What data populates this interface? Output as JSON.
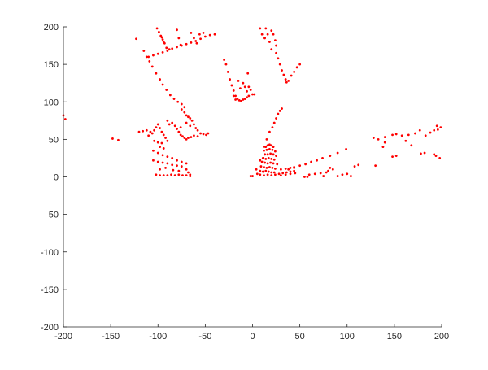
{
  "chart_data": {
    "type": "scatter",
    "title": "",
    "xlabel": "",
    "ylabel": "",
    "xlim": [
      -200,
      200
    ],
    "ylim": [
      -200,
      200
    ],
    "xticks": [
      "-200",
      "-150",
      "-100",
      "-50",
      "0",
      "50",
      "100",
      "150",
      "200"
    ],
    "yticks": [
      "-200",
      "-150",
      "-100",
      "-50",
      "0",
      "50",
      "100",
      "150",
      "200"
    ],
    "xtick_values": [
      -200,
      -150,
      -100,
      -50,
      0,
      50,
      100,
      150,
      200
    ],
    "ytick_values": [
      -200,
      -150,
      -100,
      -50,
      0,
      50,
      100,
      150,
      200
    ],
    "grid": false,
    "marker_color": "#ff0000",
    "axis_color": "#262626",
    "points": [
      [
        -110,
        160
      ],
      [
        -105,
        162
      ],
      [
        -100,
        164
      ],
      [
        -95,
        166
      ],
      [
        -90,
        168
      ],
      [
        -85,
        171
      ],
      [
        -80,
        173
      ],
      [
        -75,
        175
      ],
      [
        -70,
        177
      ],
      [
        -65,
        179
      ],
      [
        -60,
        181
      ],
      [
        -55,
        184
      ],
      [
        -50,
        187
      ],
      [
        -45,
        189
      ],
      [
        -40,
        190
      ],
      [
        -101,
        198
      ],
      [
        -99,
        193
      ],
      [
        -97,
        188
      ],
      [
        -95,
        183
      ],
      [
        -93,
        178
      ],
      [
        -91,
        172
      ],
      [
        -96,
        186
      ],
      [
        -94,
        180
      ],
      [
        -88,
        170
      ],
      [
        -80,
        196
      ],
      [
        -78,
        185
      ],
      [
        -76,
        176
      ],
      [
        -65,
        192
      ],
      [
        -62,
        185
      ],
      [
        -59,
        178
      ],
      [
        -56,
        190
      ],
      [
        -52,
        192
      ],
      [
        -123,
        184
      ],
      [
        -115,
        168
      ],
      [
        -112,
        160
      ],
      [
        -109,
        154
      ],
      [
        -106,
        147
      ],
      [
        -102,
        138
      ],
      [
        -98,
        130
      ],
      [
        -95,
        123
      ],
      [
        -91,
        116
      ],
      [
        -87,
        109
      ],
      [
        -83,
        104
      ],
      [
        -79,
        100
      ],
      [
        -75,
        97
      ],
      [
        -72,
        93
      ],
      [
        -75,
        90
      ],
      [
        -72,
        86
      ],
      [
        -70,
        82
      ],
      [
        -68,
        80
      ],
      [
        -66,
        78
      ],
      [
        -64,
        75
      ],
      [
        -62,
        70
      ],
      [
        -60,
        65
      ],
      [
        -58,
        62
      ],
      [
        -55,
        58
      ],
      [
        -52,
        57
      ],
      [
        -49,
        56
      ],
      [
        -47,
        58
      ],
      [
        -85,
        72
      ],
      [
        -82,
        68
      ],
      [
        -80,
        64
      ],
      [
        -78,
        60
      ],
      [
        -76,
        56
      ],
      [
        -74,
        54
      ],
      [
        -72,
        52
      ],
      [
        -70,
        50
      ],
      [
        -68,
        52
      ],
      [
        -65,
        53
      ],
      [
        -62,
        55
      ],
      [
        -58,
        54
      ],
      [
        -90,
        75
      ],
      [
        -88,
        70
      ],
      [
        -70,
        72
      ],
      [
        -66,
        68
      ],
      [
        -76,
        66
      ],
      [
        -120,
        60
      ],
      [
        -116,
        61
      ],
      [
        -112,
        62
      ],
      [
        -108,
        60
      ],
      [
        -106,
        58
      ],
      [
        -104,
        62
      ],
      [
        -102,
        66
      ],
      [
        -100,
        70
      ],
      [
        -98,
        65
      ],
      [
        -96,
        60
      ],
      [
        -94,
        56
      ],
      [
        -92,
        52
      ],
      [
        -90,
        48
      ],
      [
        -110,
        55
      ],
      [
        -104,
        48
      ],
      [
        -100,
        46
      ],
      [
        -105,
        35
      ],
      [
        -100,
        32
      ],
      [
        -95,
        29
      ],
      [
        -90,
        27
      ],
      [
        -85,
        25
      ],
      [
        -80,
        22
      ],
      [
        -75,
        20
      ],
      [
        -70,
        18
      ],
      [
        -105,
        22
      ],
      [
        -100,
        20
      ],
      [
        -95,
        19
      ],
      [
        -90,
        18
      ],
      [
        -85,
        16
      ],
      [
        -80,
        15
      ],
      [
        -75,
        14
      ],
      [
        -70,
        10
      ],
      [
        -68,
        6
      ],
      [
        -66,
        3
      ],
      [
        -102,
        3
      ],
      [
        -98,
        2
      ],
      [
        -94,
        2
      ],
      [
        -90,
        2
      ],
      [
        -86,
        3
      ],
      [
        -82,
        2
      ],
      [
        -78,
        3
      ],
      [
        -74,
        2
      ],
      [
        -70,
        2
      ],
      [
        -66,
        1
      ],
      [
        -98,
        10
      ],
      [
        -92,
        12
      ],
      [
        -84,
        9
      ],
      [
        -78,
        8
      ],
      [
        -98,
        40
      ],
      [
        -96,
        45
      ],
      [
        -94,
        38
      ],
      [
        -200,
        82
      ],
      [
        -198,
        77
      ],
      [
        -148,
        51
      ],
      [
        -142,
        49
      ],
      [
        -30,
        156
      ],
      [
        -28,
        150
      ],
      [
        -26,
        140
      ],
      [
        -24,
        130
      ],
      [
        -22,
        122
      ],
      [
        -20,
        115
      ],
      [
        -18,
        108
      ],
      [
        -16,
        104
      ],
      [
        -14,
        102
      ],
      [
        -12,
        101
      ],
      [
        -10,
        103
      ],
      [
        -8,
        104
      ],
      [
        -6,
        106
      ],
      [
        -4,
        108
      ],
      [
        0,
        110
      ],
      [
        2,
        110
      ],
      [
        -15,
        128
      ],
      [
        -13,
        118
      ],
      [
        -10,
        125
      ],
      [
        -8,
        120
      ],
      [
        -6,
        114
      ],
      [
        -4,
        120
      ],
      [
        -2,
        116
      ],
      [
        -20,
        108
      ],
      [
        -18,
        103
      ],
      [
        -5,
        138
      ],
      [
        8,
        198
      ],
      [
        10,
        190
      ],
      [
        12,
        185
      ],
      [
        14,
        198
      ],
      [
        16,
        190
      ],
      [
        18,
        180
      ],
      [
        20,
        195
      ],
      [
        22,
        190
      ],
      [
        24,
        182
      ],
      [
        25,
        175
      ],
      [
        25,
        165
      ],
      [
        27,
        158
      ],
      [
        29,
        150
      ],
      [
        31,
        142
      ],
      [
        33,
        136
      ],
      [
        35,
        130
      ],
      [
        36,
        126
      ],
      [
        38,
        128
      ],
      [
        41,
        135
      ],
      [
        44,
        140
      ],
      [
        47,
        146
      ],
      [
        50,
        150
      ],
      [
        20,
        170
      ],
      [
        13,
        185
      ],
      [
        0,
        1
      ],
      [
        4,
        10
      ],
      [
        8,
        22
      ],
      [
        12,
        40
      ],
      [
        15,
        50
      ],
      [
        18,
        60
      ],
      [
        21,
        66
      ],
      [
        23,
        72
      ],
      [
        25,
        78
      ],
      [
        27,
        84
      ],
      [
        29,
        88
      ],
      [
        31,
        91
      ],
      [
        14,
        40
      ],
      [
        16,
        42
      ],
      [
        18,
        43
      ],
      [
        20,
        42
      ],
      [
        22,
        40
      ],
      [
        12,
        35
      ],
      [
        15,
        36
      ],
      [
        18,
        37
      ],
      [
        21,
        36
      ],
      [
        24,
        34
      ],
      [
        13,
        30
      ],
      [
        16,
        30
      ],
      [
        19,
        31
      ],
      [
        22,
        30
      ],
      [
        25,
        28
      ],
      [
        11,
        25
      ],
      [
        14,
        24
      ],
      [
        17,
        25
      ],
      [
        20,
        24
      ],
      [
        23,
        23
      ],
      [
        10,
        20
      ],
      [
        13,
        19
      ],
      [
        16,
        18
      ],
      [
        19,
        19
      ],
      [
        22,
        18
      ],
      [
        26,
        17
      ],
      [
        9,
        14
      ],
      [
        12,
        13
      ],
      [
        15,
        12
      ],
      [
        18,
        13
      ],
      [
        21,
        12
      ],
      [
        24,
        11
      ],
      [
        8,
        8
      ],
      [
        11,
        7
      ],
      [
        14,
        8
      ],
      [
        17,
        7
      ],
      [
        20,
        6
      ],
      [
        23,
        6
      ],
      [
        5,
        4
      ],
      [
        8,
        3
      ],
      [
        12,
        2
      ],
      [
        16,
        3
      ],
      [
        20,
        2
      ],
      [
        24,
        3
      ],
      [
        28,
        4
      ],
      [
        32,
        5
      ],
      [
        36,
        6
      ],
      [
        40,
        7
      ],
      [
        44,
        8
      ],
      [
        30,
        10
      ],
      [
        35,
        11
      ],
      [
        40,
        12
      ],
      [
        44,
        13
      ],
      [
        30,
        2
      ],
      [
        35,
        3
      ],
      [
        40,
        4
      ],
      [
        45,
        5
      ],
      [
        -2,
        1
      ],
      [
        38,
        10
      ],
      [
        44,
        12
      ],
      [
        50,
        15
      ],
      [
        56,
        17
      ],
      [
        62,
        20
      ],
      [
        68,
        22
      ],
      [
        74,
        25
      ],
      [
        82,
        28
      ],
      [
        90,
        32
      ],
      [
        99,
        37
      ],
      [
        128,
        52
      ],
      [
        133,
        50
      ],
      [
        140,
        53
      ],
      [
        148,
        56
      ],
      [
        152,
        57
      ],
      [
        158,
        55
      ],
      [
        165,
        56
      ],
      [
        172,
        58
      ],
      [
        183,
        55
      ],
      [
        188,
        59
      ],
      [
        192,
        62
      ],
      [
        196,
        63
      ],
      [
        199,
        66
      ],
      [
        195,
        68
      ],
      [
        140,
        46
      ],
      [
        138,
        40
      ],
      [
        162,
        48
      ],
      [
        168,
        42
      ],
      [
        177,
        62
      ],
      [
        55,
        0
      ],
      [
        58,
        0
      ],
      [
        60,
        3
      ],
      [
        66,
        4
      ],
      [
        72,
        5
      ],
      [
        80,
        8
      ],
      [
        85,
        10
      ],
      [
        82,
        12
      ],
      [
        78,
        6
      ],
      [
        95,
        3
      ],
      [
        100,
        4
      ],
      [
        108,
        14
      ],
      [
        112,
        16
      ],
      [
        130,
        15
      ],
      [
        148,
        27
      ],
      [
        152,
        28
      ],
      [
        178,
        31
      ],
      [
        182,
        32
      ],
      [
        192,
        30
      ],
      [
        194,
        28
      ],
      [
        198,
        25
      ],
      [
        75,
        1
      ],
      [
        90,
        1
      ],
      [
        104,
        1
      ]
    ]
  }
}
